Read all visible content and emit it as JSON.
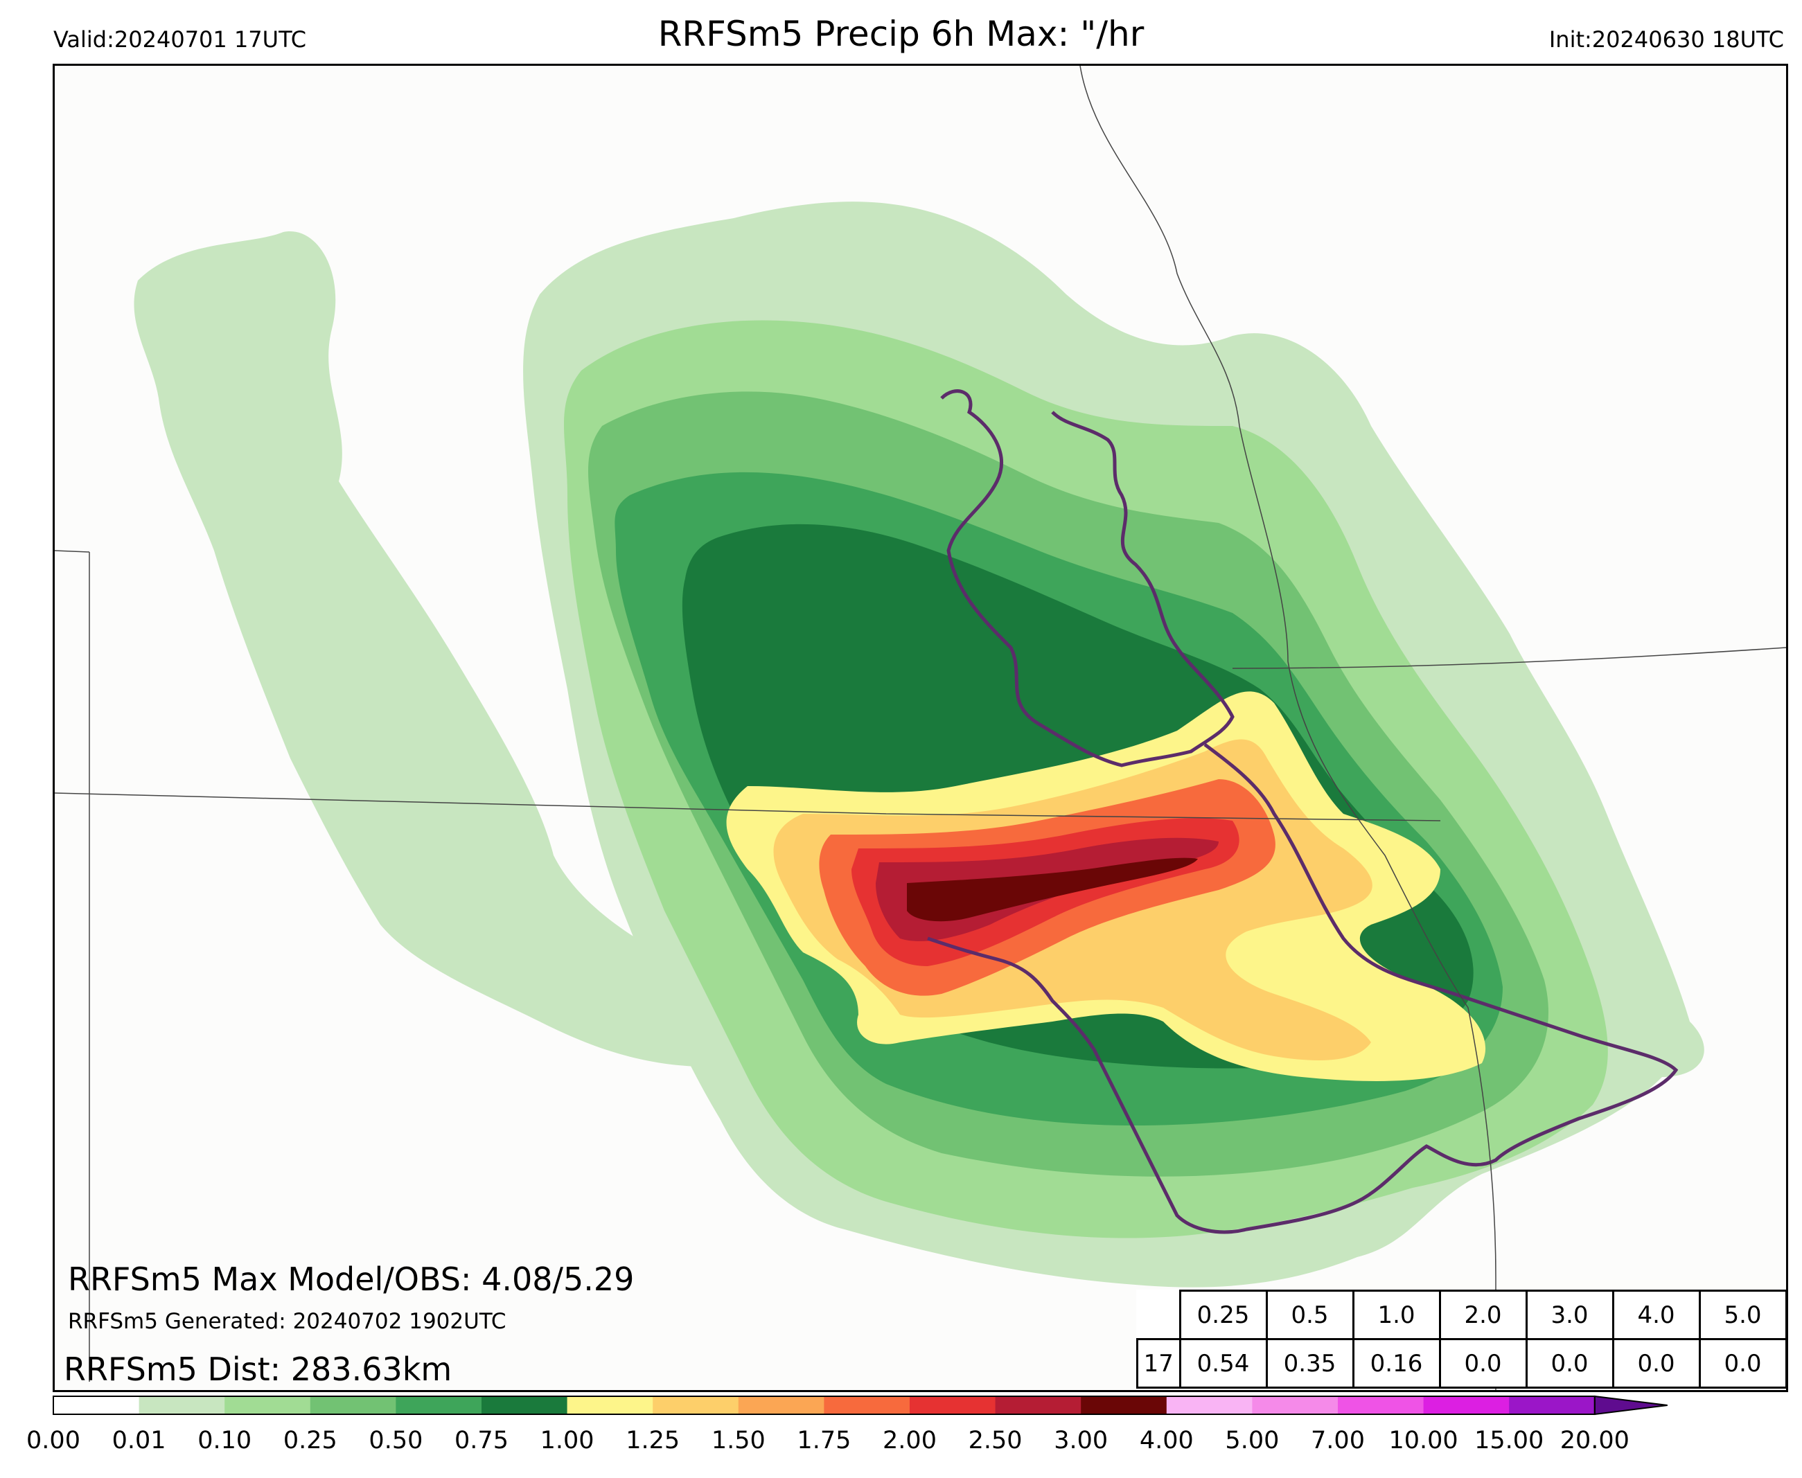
{
  "header": {
    "valid": "Valid:20240701 17UTC",
    "title": "RRFSm5 Precip 6h Max: \"/hr",
    "init": "Init:20240630 18UTC"
  },
  "stats": {
    "max_line": "RRFSm5 Max Model/OBS: 4.08/5.29",
    "generated_line": "RRFSm5 Generated: 20240702 1902UTC",
    "dist_line": "RRFSm5 Dist: 283.63km"
  },
  "threshold_table": {
    "thresholds": [
      "0.25",
      "0.5",
      "1.0",
      "2.0",
      "3.0",
      "4.0",
      "5.0"
    ],
    "hour": "17",
    "values": [
      "0.54",
      "0.35",
      "0.16",
      "0.0",
      "0.0",
      "0.0",
      "0.0"
    ]
  },
  "colorbar": {
    "ticks": [
      "0.00",
      "0.01",
      "0.10",
      "0.25",
      "0.50",
      "0.75",
      "1.00",
      "1.25",
      "1.50",
      "1.75",
      "2.00",
      "2.50",
      "3.00",
      "4.00",
      "5.00",
      "7.00",
      "10.00",
      "15.00",
      "20.00"
    ],
    "colors": [
      "#ffffff",
      "#c8e6c0",
      "#a1dc94",
      "#72c273",
      "#3ea55a",
      "#1a7a3c",
      "#fdf58a",
      "#fdcf6a",
      "#fba654",
      "#f76a3d",
      "#e63232",
      "#b51d34",
      "#6a0606",
      "#f9b4f4",
      "#f58ae9",
      "#ef53e6",
      "#dc1fe2",
      "#9b16c8"
    ],
    "extend_color": "#5f0c8f"
  },
  "legend_colors": {
    "observed_outline": "#5c2c6a",
    "state_border": "#444444",
    "background": "#fcfcfb"
  }
}
